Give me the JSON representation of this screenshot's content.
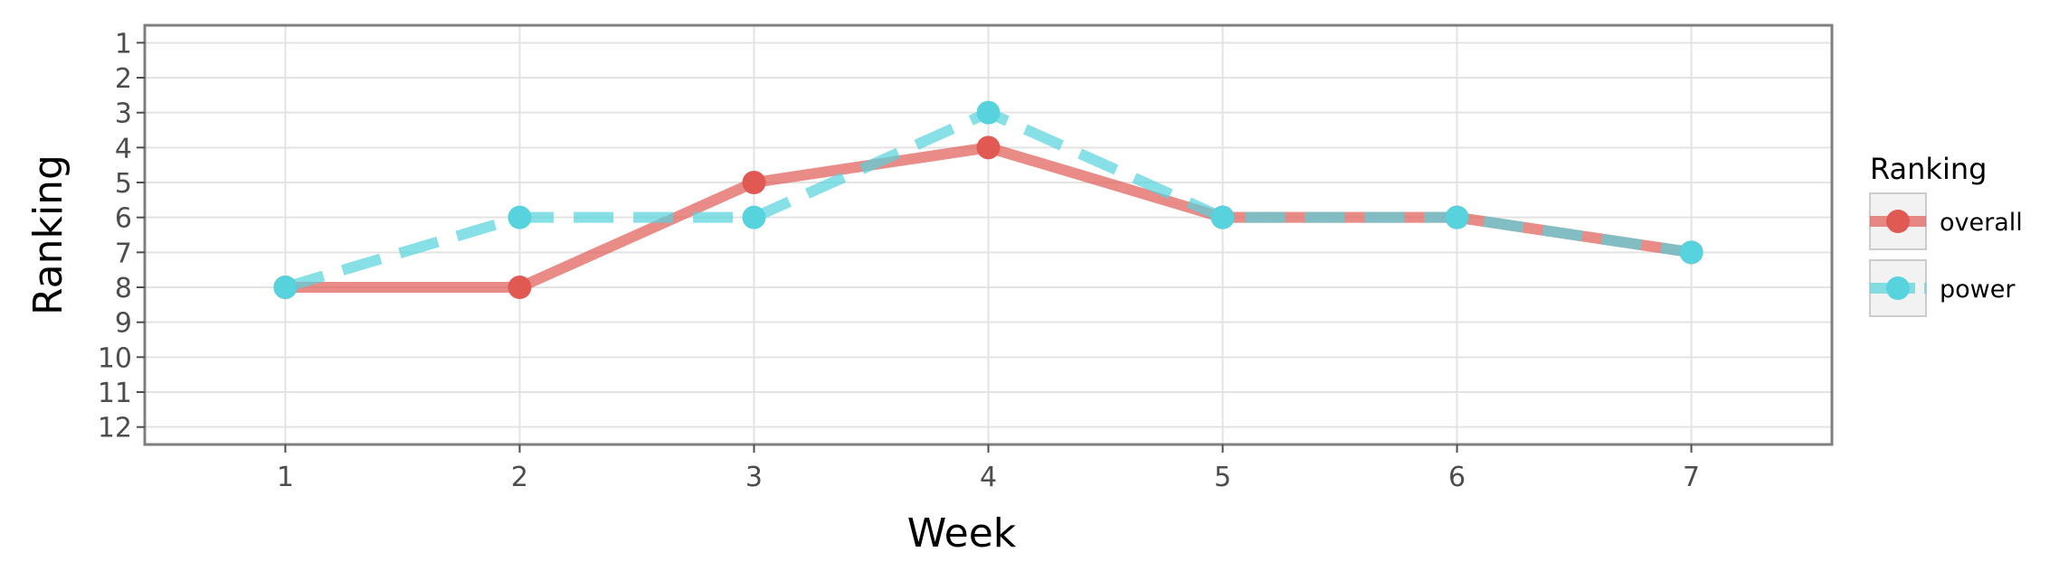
{
  "chart_data": {
    "type": "line",
    "title": "",
    "xlabel": "Week",
    "ylabel": "Ranking",
    "x": [
      1,
      2,
      3,
      4,
      5,
      6,
      7
    ],
    "xticks": [
      "1",
      "2",
      "3",
      "4",
      "5",
      "6",
      "7"
    ],
    "yticks": [
      "1",
      "2",
      "3",
      "4",
      "5",
      "6",
      "7",
      "8",
      "9",
      "10",
      "11",
      "12"
    ],
    "xlim": [
      0.4,
      7.6
    ],
    "ylim": [
      12.5,
      0.5
    ],
    "y_reversed": true,
    "grid": true,
    "legend": {
      "title": "Ranking",
      "position": "right"
    },
    "series": [
      {
        "name": "overall",
        "values": [
          8,
          8,
          5,
          4,
          6,
          6,
          7
        ],
        "color": "#e05a53",
        "line_style": "solid"
      },
      {
        "name": "power",
        "values": [
          8,
          6,
          6,
          3,
          6,
          6,
          7
        ],
        "color": "#56d3dd",
        "line_style": "dashed"
      }
    ]
  }
}
